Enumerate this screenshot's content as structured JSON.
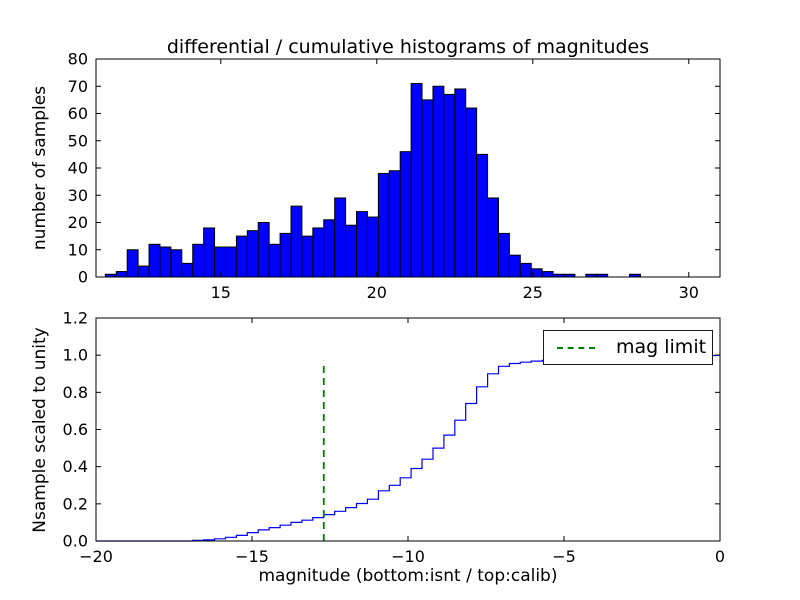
{
  "figure": {
    "title": "differential / cumulative histograms of magnitudes",
    "xlabel": "magnitude (bottom:isnt / top:calib)",
    "background": "#ffffff"
  },
  "colors": {
    "histogram_fill": "#0000ff",
    "histogram_edge": "#000000",
    "cumulative_line": "#0000ff",
    "mag_limit_line": "#008000",
    "axes": "#000000"
  },
  "chart_data": [
    {
      "type": "bar",
      "name": "differential-histogram-top",
      "title": "differential / cumulative histograms of magnitudes",
      "ylabel": "number of samples",
      "xlim": [
        11,
        31
      ],
      "ylim": [
        0,
        80
      ],
      "grid": false,
      "xticks": {
        "values": [
          15,
          20,
          25,
          30
        ],
        "labels": [
          "15",
          "20",
          "25",
          "30"
        ]
      },
      "yticks": {
        "values": [
          0,
          10,
          20,
          30,
          40,
          50,
          60,
          70,
          80
        ],
        "labels": [
          "0",
          "10",
          "20",
          "30",
          "40",
          "50",
          "60",
          "70",
          "80"
        ]
      },
      "bar_color": "#0000ff",
      "bar_edge_color": "#000000",
      "bins": {
        "start": 11.3,
        "width": 0.35
      },
      "counts": [
        1,
        2,
        10,
        4,
        12,
        11,
        10,
        5,
        12,
        18,
        11,
        11,
        15,
        17,
        20,
        12,
        16,
        26,
        15,
        18,
        21,
        29,
        19,
        24,
        22,
        38,
        39,
        46,
        71,
        65,
        70,
        67,
        69,
        62,
        45,
        29,
        16,
        8,
        5,
        3,
        2,
        1,
        1,
        0,
        1,
        1,
        0,
        0,
        1,
        0
      ]
    },
    {
      "type": "line",
      "style": "step",
      "name": "cumulative-histogram-bottom",
      "ylabel": "Nsample scaled to unity",
      "xlabel": "magnitude (bottom:isnt / top:calib)",
      "xlim": [
        -20,
        0
      ],
      "ylim": [
        0,
        1.2
      ],
      "grid": false,
      "xticks": {
        "values": [
          -20,
          -15,
          -10,
          -5,
          0
        ],
        "labels": [
          "−20",
          "−15",
          "−10",
          "−5",
          "0"
        ]
      },
      "yticks": {
        "values": [
          0.0,
          0.2,
          0.4,
          0.6,
          0.8,
          1.0,
          1.2
        ],
        "labels": [
          "0.0",
          "0.2",
          "0.4",
          "0.6",
          "0.8",
          "1.0",
          "1.2"
        ]
      },
      "line_color": "#0000ff",
      "points": {
        "x": [
          -20.0,
          -16.9,
          -16.55,
          -16.2,
          -15.85,
          -15.5,
          -15.15,
          -14.8,
          -14.45,
          -14.1,
          -13.75,
          -13.4,
          -13.05,
          -12.7,
          -12.35,
          -12.0,
          -11.65,
          -11.3,
          -10.95,
          -10.6,
          -10.25,
          -9.9,
          -9.55,
          -9.2,
          -8.85,
          -8.5,
          -8.15,
          -7.8,
          -7.45,
          -7.1,
          -6.75,
          -6.4,
          -6.05,
          -5.7,
          -5.35,
          -5.0,
          -4.3,
          -3.6,
          -2.9,
          -2.2,
          -1.5,
          -0.8,
          -0.1,
          0.0
        ],
        "y": [
          0.0,
          0.003,
          0.006,
          0.012,
          0.02,
          0.03,
          0.045,
          0.06,
          0.072,
          0.085,
          0.1,
          0.112,
          0.126,
          0.142,
          0.16,
          0.18,
          0.202,
          0.225,
          0.27,
          0.3,
          0.34,
          0.39,
          0.44,
          0.5,
          0.57,
          0.65,
          0.74,
          0.83,
          0.9,
          0.94,
          0.955,
          0.962,
          0.968,
          0.972,
          0.975,
          0.978,
          0.982,
          0.986,
          0.99,
          0.993,
          0.996,
          0.998,
          1.0,
          1.0
        ]
      },
      "mag_limit": {
        "x": -12.7,
        "ymin": 0,
        "ymax": 0.97,
        "color": "#008000",
        "style": "dashed"
      },
      "legend": {
        "label": "mag limit",
        "position": "upper right"
      }
    }
  ]
}
